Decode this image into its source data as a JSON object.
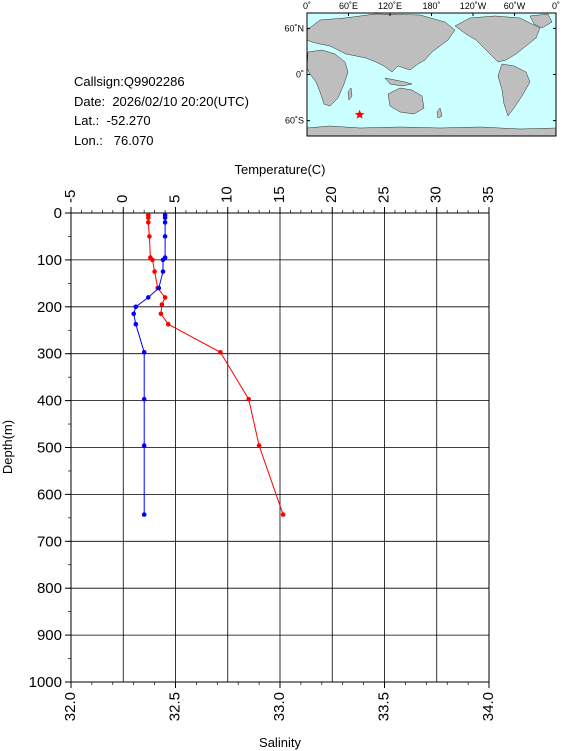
{
  "station": {
    "callsign_label": "Callsign:",
    "callsign": "Q9902286",
    "date_label": "Date:",
    "date": "2026/02/10 20:20(UTC)",
    "lat_label": "Lat.:",
    "lat": "-52.270",
    "lon_label": "Lon.:",
    "lon": "76.070"
  },
  "map": {
    "lon_labels": [
      "0˚",
      "60˚E",
      "120˚E",
      "180˚",
      "120˚W",
      "60˚W",
      "0˚"
    ],
    "lat_labels": [
      "60˚N",
      "0˚",
      "60˚S"
    ],
    "marker_lon": 76.07,
    "marker_lat": -52.27,
    "ocean_color": "#ccffff",
    "land_color": "#bebebe",
    "marker_color": "#ff0000"
  },
  "chart_data": {
    "type": "line",
    "x_top_label": "Temperature(C)",
    "x_bottom_label": "Salinity",
    "ylabel": "Depth(m)",
    "temp_range": [
      -5,
      35
    ],
    "temp_ticks": [
      "-5",
      "0",
      "5",
      "10",
      "15",
      "20",
      "25",
      "30",
      "35"
    ],
    "sal_range": [
      32.0,
      34.0
    ],
    "sal_ticks": [
      "32.0",
      "32.5",
      "33.0",
      "33.5",
      "34.0"
    ],
    "depth_range": [
      0,
      1000
    ],
    "depth_ticks": [
      "0",
      "100",
      "200",
      "300",
      "400",
      "500",
      "600",
      "700",
      "800",
      "900",
      "1000"
    ],
    "grid": true,
    "series": [
      {
        "name": "Temperature",
        "axis": "temperature",
        "color": "#ff0000",
        "points": [
          {
            "depth": 5,
            "value": 2.4
          },
          {
            "depth": 10,
            "value": 2.4
          },
          {
            "depth": 20,
            "value": 2.4
          },
          {
            "depth": 50,
            "value": 2.5
          },
          {
            "depth": 95,
            "value": 2.6
          },
          {
            "depth": 100,
            "value": 2.8
          },
          {
            "depth": 125,
            "value": 3.0
          },
          {
            "depth": 160,
            "value": 3.3
          },
          {
            "depth": 180,
            "value": 4.0
          },
          {
            "depth": 195,
            "value": 3.7
          },
          {
            "depth": 215,
            "value": 3.6
          },
          {
            "depth": 237,
            "value": 4.3
          },
          {
            "depth": 297,
            "value": 9.3
          },
          {
            "depth": 397,
            "value": 12.0
          },
          {
            "depth": 496,
            "value": 13.0
          },
          {
            "depth": 643,
            "value": 15.3
          }
        ]
      },
      {
        "name": "Salinity",
        "axis": "salinity",
        "color": "#0000ff",
        "points": [
          {
            "depth": 5,
            "value": 32.45
          },
          {
            "depth": 10,
            "value": 32.45
          },
          {
            "depth": 20,
            "value": 32.45
          },
          {
            "depth": 50,
            "value": 32.45
          },
          {
            "depth": 95,
            "value": 32.45
          },
          {
            "depth": 100,
            "value": 32.44
          },
          {
            "depth": 125,
            "value": 32.44
          },
          {
            "depth": 160,
            "value": 32.42
          },
          {
            "depth": 180,
            "value": 32.37
          },
          {
            "depth": 200,
            "value": 32.31
          },
          {
            "depth": 215,
            "value": 32.3
          },
          {
            "depth": 237,
            "value": 32.31
          },
          {
            "depth": 297,
            "value": 32.35
          },
          {
            "depth": 397,
            "value": 32.35
          },
          {
            "depth": 496,
            "value": 32.35
          },
          {
            "depth": 643,
            "value": 32.35
          }
        ]
      }
    ]
  }
}
